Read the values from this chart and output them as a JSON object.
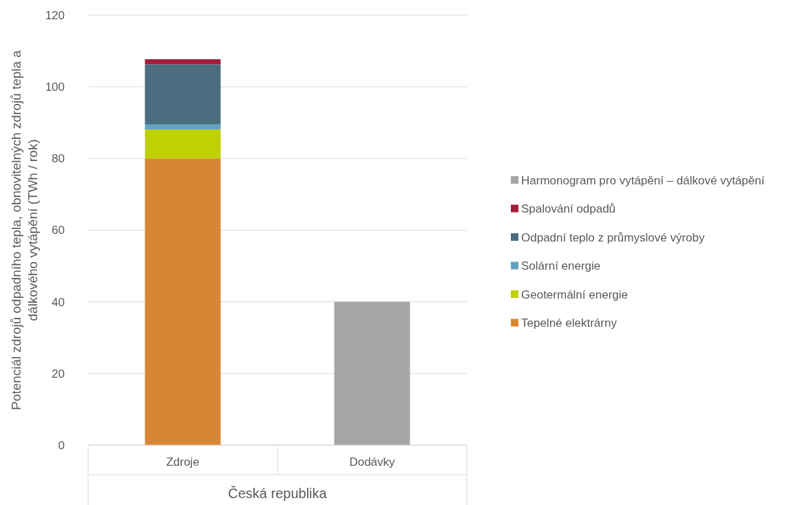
{
  "chart_data": {
    "type": "bar",
    "stacked": true,
    "ylabel": "Potenciál zdrojů odpadního tepla, obnovitelných zdrojů tepla a dálkového vytápění (TWh / rok)",
    "xlabel": "Česká republika",
    "categories": [
      "Zdroje",
      "Dodávky"
    ],
    "ylim": [
      0,
      120
    ],
    "yticks": [
      0,
      20,
      40,
      60,
      80,
      100,
      120
    ],
    "grid": "y",
    "legend": "right",
    "series": [
      {
        "name": "Tepelné elektrárny",
        "color": "#d98634",
        "values": [
          80,
          null
        ]
      },
      {
        "name": "Geotermální energie",
        "color": "#bfd100",
        "values": [
          8.1,
          null
        ]
      },
      {
        "name": "Solární energie",
        "color": "#62a3c1",
        "values": [
          1.4,
          null
        ]
      },
      {
        "name": "Odpadní teplo z průmyslové výroby",
        "color": "#4a6e80",
        "values": [
          16.8,
          null
        ]
      },
      {
        "name": "Spalování odpadů",
        "color": "#a51c36",
        "values": [
          1.4,
          null
        ]
      },
      {
        "name": "Harmonogram pro vytápění – dálkové vytápění",
        "color": "#a6a6a6",
        "values": [
          null,
          40
        ]
      }
    ]
  }
}
